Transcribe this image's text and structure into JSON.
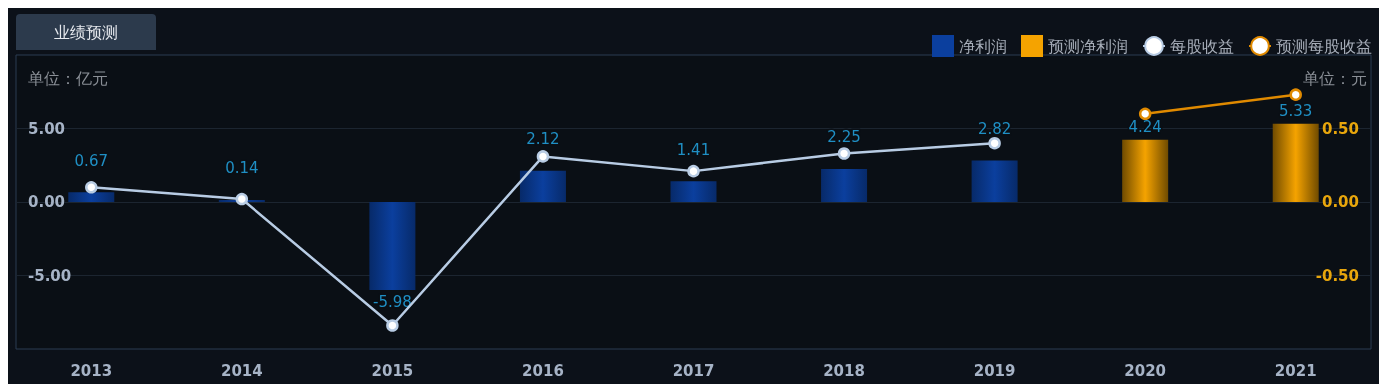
{
  "chart_data": {
    "type": "bar",
    "title": "业绩预测",
    "categories": [
      "2013",
      "2014",
      "2015",
      "2016",
      "2017",
      "2018",
      "2019",
      "2020",
      "2021"
    ],
    "series": [
      {
        "name": "净利润",
        "color": "#0b3f9e",
        "values": [
          0.67,
          0.14,
          -5.98,
          2.12,
          1.41,
          2.25,
          2.82,
          null,
          null
        ],
        "value_labels": [
          "0.67",
          "0.14",
          "-5.98",
          "2.12",
          "1.41",
          "2.25",
          "2.82",
          null,
          null
        ]
      },
      {
        "name": "预测净利润",
        "color": "#f5a300",
        "values": [
          null,
          null,
          null,
          null,
          null,
          null,
          null,
          4.24,
          5.33
        ],
        "value_labels": [
          null,
          null,
          null,
          null,
          null,
          null,
          null,
          "4.24",
          "5.33"
        ]
      },
      {
        "name": "每股收益",
        "type": "line",
        "axis": "y2",
        "color": "#b8cce4",
        "values": [
          0.1,
          0.02,
          -0.84,
          0.31,
          0.21,
          0.33,
          0.4,
          null,
          null
        ]
      },
      {
        "name": "预测每股收益",
        "type": "line",
        "axis": "y2",
        "color": "#e08a00",
        "values": [
          null,
          null,
          null,
          null,
          null,
          null,
          null,
          0.6,
          0.73
        ]
      }
    ],
    "ylim": [
      -10,
      10
    ],
    "yticks": [
      {
        "value": -5,
        "label": "-5.00"
      },
      {
        "value": 0,
        "label": "0.00"
      },
      {
        "value": 5,
        "label": "5.00"
      }
    ],
    "y2lim": [
      -1,
      1
    ],
    "y2ticks": [
      {
        "value": -0.5,
        "label": "-0.50"
      },
      {
        "value": 0,
        "label": "0.00"
      },
      {
        "value": 0.5,
        "label": "0.50"
      }
    ],
    "annotations": [
      "单位：亿元",
      "单位：元"
    ],
    "grid": "y",
    "legend": "top right",
    "marker": "circle"
  }
}
